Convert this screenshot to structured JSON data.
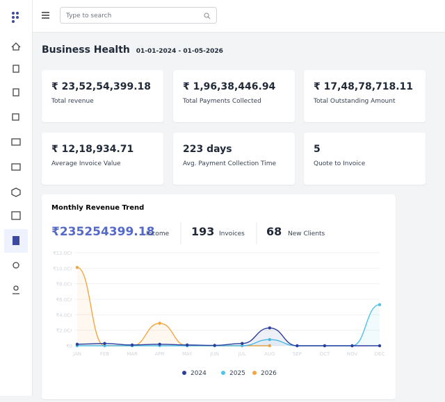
{
  "search_placeholder": "Type to search",
  "header": {
    "title": "Business Health",
    "date_range": "01-01-2024 - 01-05-2026"
  },
  "cards": [
    {
      "value": "₹ 23,52,54,399.18",
      "label": "Total revenue"
    },
    {
      "value": "₹ 1,96,38,446.94",
      "label": "Total Payments Collected"
    },
    {
      "value": "₹ 17,48,78,718.11",
      "label": "Total Outstanding Amount"
    },
    {
      "value": "₹ 12,18,934.71",
      "label": "Average Invoice Value"
    },
    {
      "value": "223 days",
      "label": "Avg. Payment Collection Time"
    },
    {
      "value": "5",
      "label": "Quote to Invoice"
    }
  ],
  "chart_data": {
    "type": "line",
    "title": "Monthly Revenue Trend",
    "summary": [
      {
        "value": "₹235254399.18",
        "label": "Income"
      },
      {
        "value": "193",
        "label": "Invoices"
      },
      {
        "value": "68",
        "label": "New Clients"
      }
    ],
    "categories": [
      "JAN",
      "FEB",
      "MAR",
      "APR",
      "MAY",
      "JUN",
      "JUL",
      "AUG",
      "SEP",
      "OCT",
      "NOV",
      "DEC"
    ],
    "series": [
      {
        "name": "2024",
        "color": "#2b3f9e",
        "values": [
          0.2,
          0.3,
          0.1,
          0.2,
          0.1,
          0.05,
          0.3,
          2.3,
          0,
          0,
          0,
          0
        ]
      },
      {
        "name": "2025",
        "color": "#4fc3e8",
        "values": [
          0,
          0,
          0,
          0,
          0,
          0,
          0,
          0.8,
          0,
          0,
          0,
          5.3
        ]
      },
      {
        "name": "2026",
        "color": "#f4a640",
        "values": [
          10.1,
          0,
          0,
          2.9,
          0,
          0,
          0,
          0,
          null,
          null,
          null,
          null
        ]
      }
    ],
    "ylim": [
      0,
      12
    ],
    "yticks": [
      {
        "value": 0,
        "label": "₹0"
      },
      {
        "value": 2,
        "label": "₹2.0Cr"
      },
      {
        "value": 4,
        "label": "₹4.0Cr"
      },
      {
        "value": 6,
        "label": "₹6.0Cr"
      },
      {
        "value": 8,
        "label": "₹8.0Cr"
      },
      {
        "value": 10,
        "label": "₹10.0Cr"
      },
      {
        "value": 12,
        "label": "₹12.0Cr"
      }
    ],
    "grid": true
  }
}
